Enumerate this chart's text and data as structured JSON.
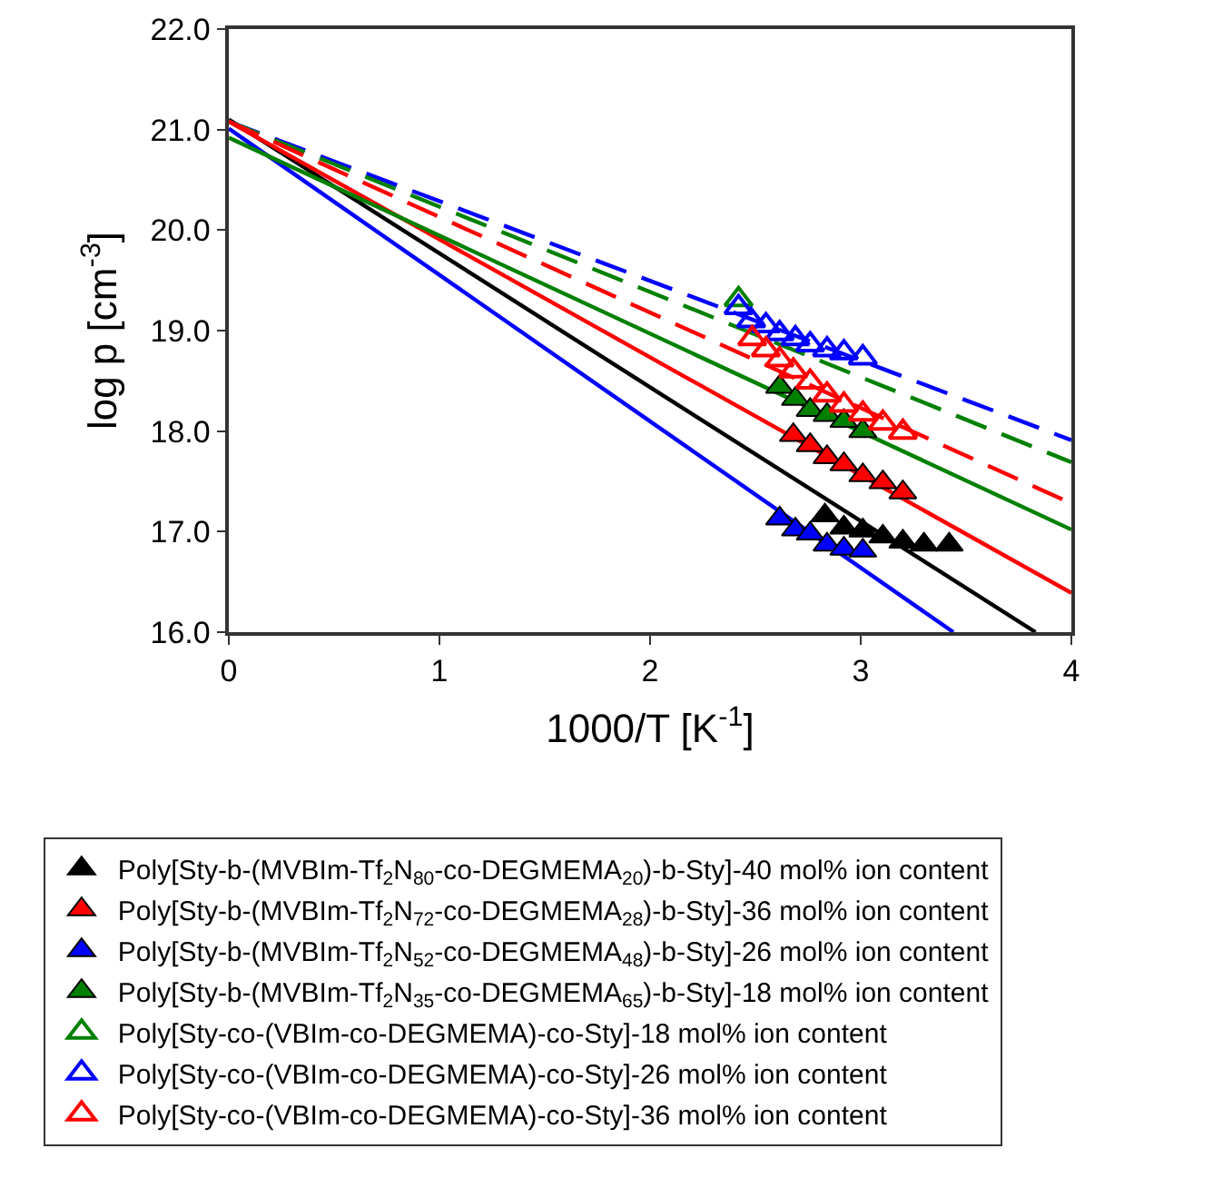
{
  "chart_data": {
    "type": "scatter",
    "xlabel": "1000/T [K$^{-1}$]",
    "ylabel": "log p [cm$^{-3}$]",
    "xlim": [
      0,
      4
    ],
    "xticks": [
      0,
      1,
      2,
      3,
      4
    ],
    "ylim": [
      16,
      22
    ],
    "yticks": [
      {
        "value": 16,
        "label": "16.0"
      },
      {
        "value": 17,
        "label": "17.0"
      },
      {
        "value": 18,
        "label": "18.0"
      },
      {
        "value": 19,
        "label": "19.0"
      },
      {
        "value": 20,
        "label": "20.0"
      },
      {
        "value": 21,
        "label": "21.0"
      },
      {
        "value": 22,
        "label": "22.0"
      }
    ],
    "legend": "bottom",
    "marker": "triangle",
    "series": [
      {
        "type": "line",
        "color": "#000000",
        "line_style": "solid",
        "marker": "none",
        "x": [
          0,
          3.83
        ],
        "values": [
          21.1,
          16.0
        ]
      },
      {
        "type": "line",
        "color": "#ff0000",
        "line_style": "solid",
        "marker": "none",
        "x": [
          0,
          4
        ],
        "values": [
          21.08,
          16.39
        ]
      },
      {
        "type": "line",
        "color": "#0000ff",
        "line_style": "solid",
        "marker": "none",
        "x": [
          0,
          3.44
        ],
        "values": [
          21.01,
          16.0
        ]
      },
      {
        "type": "line",
        "color": "#008000",
        "line_style": "solid",
        "marker": "none",
        "x": [
          0,
          4
        ],
        "values": [
          20.92,
          17.02
        ]
      },
      {
        "type": "line",
        "color": "#0000ff",
        "line_style": "dashed",
        "marker": "none",
        "x": [
          0,
          4
        ],
        "values": [
          21.08,
          17.91
        ]
      },
      {
        "type": "line",
        "color": "#008000",
        "line_style": "dashed",
        "marker": "none",
        "x": [
          0,
          4
        ],
        "values": [
          21.08,
          17.69
        ]
      },
      {
        "type": "line",
        "color": "#ff0000",
        "line_style": "dashed",
        "marker": "none",
        "x": [
          0,
          4
        ],
        "values": [
          21.08,
          17.28
        ]
      },
      {
        "name": "Poly[Sty-b-(MVBIm-Tf$_{2}$N$_{80}$-co-DEGMEMA$_{20}$)-b-Sty]-40 mol% ion content",
        "color": "#000000",
        "x": [
          2.83,
          2.92,
          3.01,
          3.105,
          3.2,
          3.3,
          3.42
        ],
        "values": [
          17.16,
          17.04,
          17.01,
          16.95,
          16.9,
          16.87,
          16.87
        ]
      },
      {
        "name": "Poly[Sty-b-(MVBIm-Tf$_{2}$N$_{72}$-co-DEGMEMA$_{28}$)-b-Sty]-36 mol% ion content",
        "color": "#ff0000",
        "x": [
          2.68,
          2.76,
          2.84,
          2.92,
          3.01,
          3.105,
          3.2
        ],
        "values": [
          17.96,
          17.86,
          17.74,
          17.67,
          17.56,
          17.49,
          17.39
        ]
      },
      {
        "name": "Poly[Sty-b-(MVBIm-Tf$_{2}$N$_{52}$-co-DEGMEMA$_{48}$)-b-Sty]-26 mol% ion content",
        "color": "#0000ff",
        "x": [
          2.615,
          2.69,
          2.76,
          2.84,
          2.92,
          3.01
        ],
        "values": [
          17.13,
          17.02,
          16.98,
          16.87,
          16.83,
          16.81
        ]
      },
      {
        "name": "Poly[Sty-b-(MVBIm-Tf$_{2}$N$_{35}$-co-DEGMEMA$_{65}$)-b-Sty]-18 mol% ion content",
        "color": "#008000",
        "x": [
          2.615,
          2.69,
          2.76,
          2.84,
          2.92,
          3.01
        ],
        "values": [
          18.44,
          18.32,
          18.21,
          18.16,
          18.1,
          18.0
        ]
      },
      {
        "name": "Poly[Sty-co-(VBIm-co-DEGMEMA)-co-Sty]-18 mol% ion content",
        "color": "#008000",
        "marker": "triangle-open",
        "x": [
          2.42
        ],
        "values": [
          19.31
        ]
      },
      {
        "name": "Poly[Sty-co-(VBIm-co-DEGMEMA)-co-Sty]-26 mol% ion content",
        "color": "#0000ff",
        "marker": "triangle-open",
        "x": [
          2.42,
          2.48,
          2.55,
          2.615,
          2.69,
          2.76,
          2.84,
          2.92,
          3.01
        ],
        "values": [
          19.23,
          19.1,
          19.05,
          18.97,
          18.92,
          18.86,
          18.81,
          18.78,
          18.73
        ]
      },
      {
        "name": "Poly[Sty-co-(VBIm-co-DEGMEMA)-co-Sty]-36 mol% ion content",
        "color": "#ff0000",
        "marker": "triangle-open",
        "x": [
          2.485,
          2.55,
          2.615,
          2.68,
          2.76,
          2.84,
          2.92,
          3.01,
          3.105,
          3.2
        ],
        "values": [
          18.92,
          18.81,
          18.71,
          18.6,
          18.49,
          18.36,
          18.26,
          18.17,
          18.08,
          17.99
        ]
      }
    ]
  }
}
